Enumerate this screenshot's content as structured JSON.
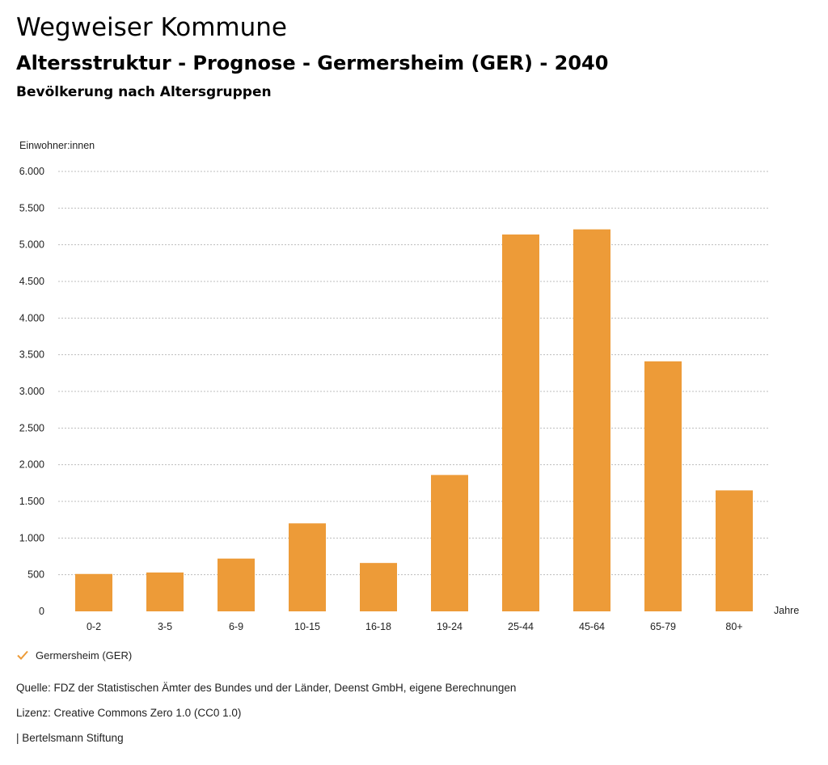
{
  "header": {
    "title": "Wegweiser Kommune",
    "subtitle": "Altersstruktur - Prognose - Germersheim (GER) - 2040",
    "subsubtitle": "Bevölkerung nach Altersgruppen"
  },
  "legend": {
    "label": "Germersheim (GER)",
    "icon": "check-icon"
  },
  "footer": {
    "source": "Quelle: FDZ der Statistischen Ämter des Bundes und der Länder, Deenst GmbH, eigene Berechnungen",
    "license": "Lizenz: Creative Commons Zero 1.0 (CC0 1.0)",
    "publisher": "| Bertelsmann Stiftung"
  },
  "colors": {
    "bar": "#ED9B38",
    "grid": "#bdbdbd"
  },
  "chart_data": {
    "type": "bar",
    "ylabel": "Einwohner:innen",
    "xlabel": "Jahre",
    "categories": [
      "0-2",
      "3-5",
      "6-9",
      "10-15",
      "16-18",
      "19-24",
      "25-44",
      "45-64",
      "65-79",
      "80+"
    ],
    "series": [
      {
        "name": "Germersheim (GER)",
        "values": [
          510,
          530,
          720,
          1200,
          660,
          1860,
          5140,
          5210,
          3410,
          1650
        ]
      }
    ],
    "ylim": [
      0,
      6000
    ],
    "yticks": [
      0,
      500,
      1000,
      1500,
      2000,
      2500,
      3000,
      3500,
      4000,
      4500,
      5000,
      5500,
      6000
    ],
    "ytick_labels": [
      "0",
      "500",
      "1.000",
      "1.500",
      "2.000",
      "2.500",
      "3.000",
      "3.500",
      "4.000",
      "4.500",
      "5.000",
      "5.500",
      "6.000"
    ],
    "grid": true,
    "legend_position": "bottom-left"
  }
}
